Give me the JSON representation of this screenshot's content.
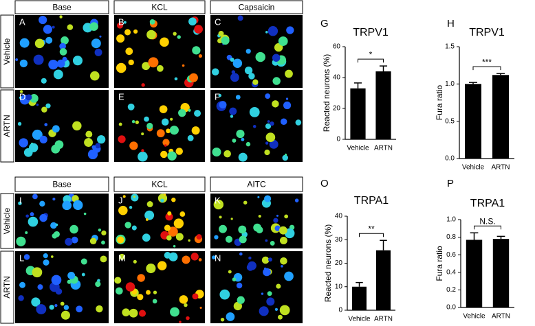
{
  "panels": [
    {
      "columns": [
        "Base",
        "KCL",
        "Capsaicin"
      ],
      "conditions": [
        "Vehicle",
        "ARTN"
      ],
      "letters": [
        "A",
        "B",
        "C",
        "D",
        "E",
        "F"
      ]
    },
    {
      "columns": [
        "Base",
        "KCL",
        "AITC"
      ],
      "conditions": [
        "Vehicle",
        "ARTN"
      ],
      "letters": [
        "I",
        "J",
        "K",
        "L",
        "M",
        "N"
      ]
    }
  ],
  "chart_data": [
    {
      "type": "bar",
      "panel_label": "G",
      "title": "TRPV1",
      "y_label": "Reacted neurons (%)",
      "categories": [
        "Vehicle",
        "ARTN"
      ],
      "values": [
        33,
        44
      ],
      "errors": [
        3.5,
        3.5
      ],
      "color": "#000000",
      "ylim": [
        0,
        60
      ],
      "yticks": [
        0,
        20,
        40,
        60
      ],
      "annotation": "*"
    },
    {
      "type": "bar",
      "panel_label": "H",
      "title": "TRPV1",
      "y_label": "Fura ratio",
      "categories": [
        "Vehicle",
        "ARTN"
      ],
      "values": [
        1.0,
        1.12
      ],
      "errors": [
        0.02,
        0.02
      ],
      "color": "#000000",
      "ylim": [
        0,
        1.5
      ],
      "yticks": [
        {
          "value": 0,
          "label": "0.0"
        },
        0.5,
        {
          "value": 1,
          "label": "1.0"
        },
        1.5
      ],
      "annotation": "***"
    },
    {
      "type": "bar",
      "panel_label": "O",
      "title": "TRPA1",
      "y_label": "Reacted neurons (%)",
      "categories": [
        "Vehicle",
        "ARTN"
      ],
      "values": [
        10,
        25.5
      ],
      "errors": [
        1.8,
        4.2
      ],
      "color": "#000000",
      "ylim": [
        0,
        40
      ],
      "yticks": [
        0,
        10,
        20,
        30,
        40
      ],
      "annotation": "**"
    },
    {
      "type": "bar",
      "panel_label": "P",
      "title": "TRPA1",
      "y_label": "Fura ratio",
      "categories": [
        "Vehicle",
        "ARTN"
      ],
      "values": [
        0.77,
        0.78
      ],
      "errors": [
        0.08,
        0.03
      ],
      "color": "#000000",
      "ylim": [
        0,
        1.0
      ],
      "yticks": [
        {
          "value": 0,
          "label": "0.0"
        },
        0.2,
        0.4,
        0.6,
        0.8,
        {
          "value": 1,
          "label": "1.0"
        }
      ],
      "annotation": "N.S."
    }
  ]
}
